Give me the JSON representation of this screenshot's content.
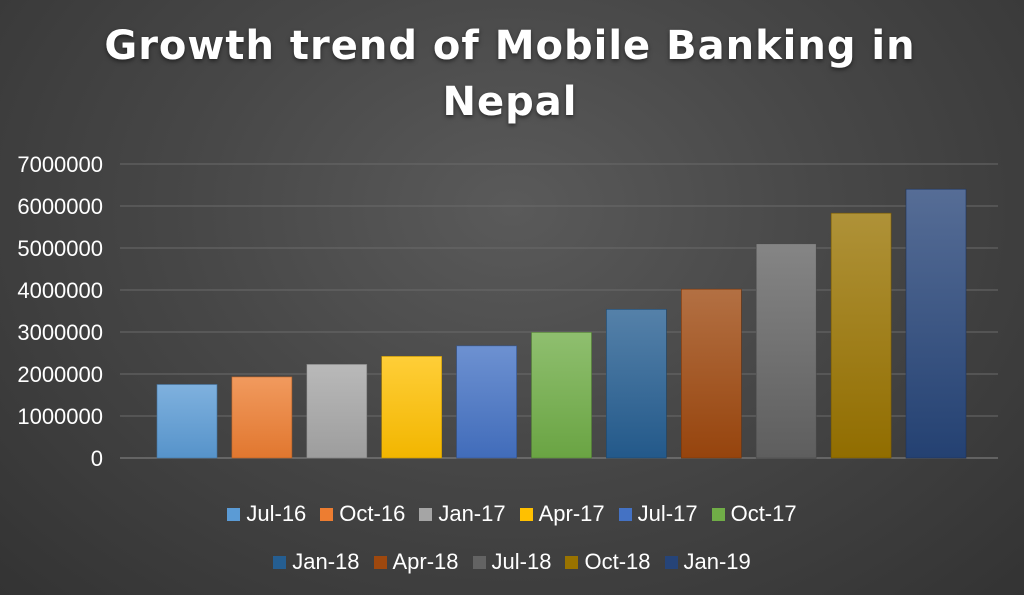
{
  "chart_data": {
    "type": "bar",
    "title_lines": [
      "Growth trend of Mobile Banking in",
      "Nepal"
    ],
    "categories": [
      "Jul-16",
      "Oct-16",
      "Jan-17",
      "Apr-17",
      "Jul-17",
      "Oct-17",
      "Jan-18",
      "Apr-18",
      "Jul-18",
      "Oct-18",
      "Jan-19"
    ],
    "values": [
      1750000,
      1930000,
      2230000,
      2420000,
      2670000,
      2990000,
      3540000,
      4020000,
      5100000,
      5830000,
      6400000
    ],
    "colors": [
      "#5b9bd5",
      "#ed7d31",
      "#a5a5a5",
      "#ffc000",
      "#4472c4",
      "#70ad47",
      "#255e91",
      "#9e480e",
      "#636363",
      "#997300",
      "#264478"
    ],
    "ylim": [
      0,
      7000000
    ],
    "yticks": [
      "0",
      "1000000",
      "2000000",
      "3000000",
      "4000000",
      "5000000",
      "6000000",
      "7000000"
    ],
    "grid": true,
    "legend_position": "bottom"
  }
}
